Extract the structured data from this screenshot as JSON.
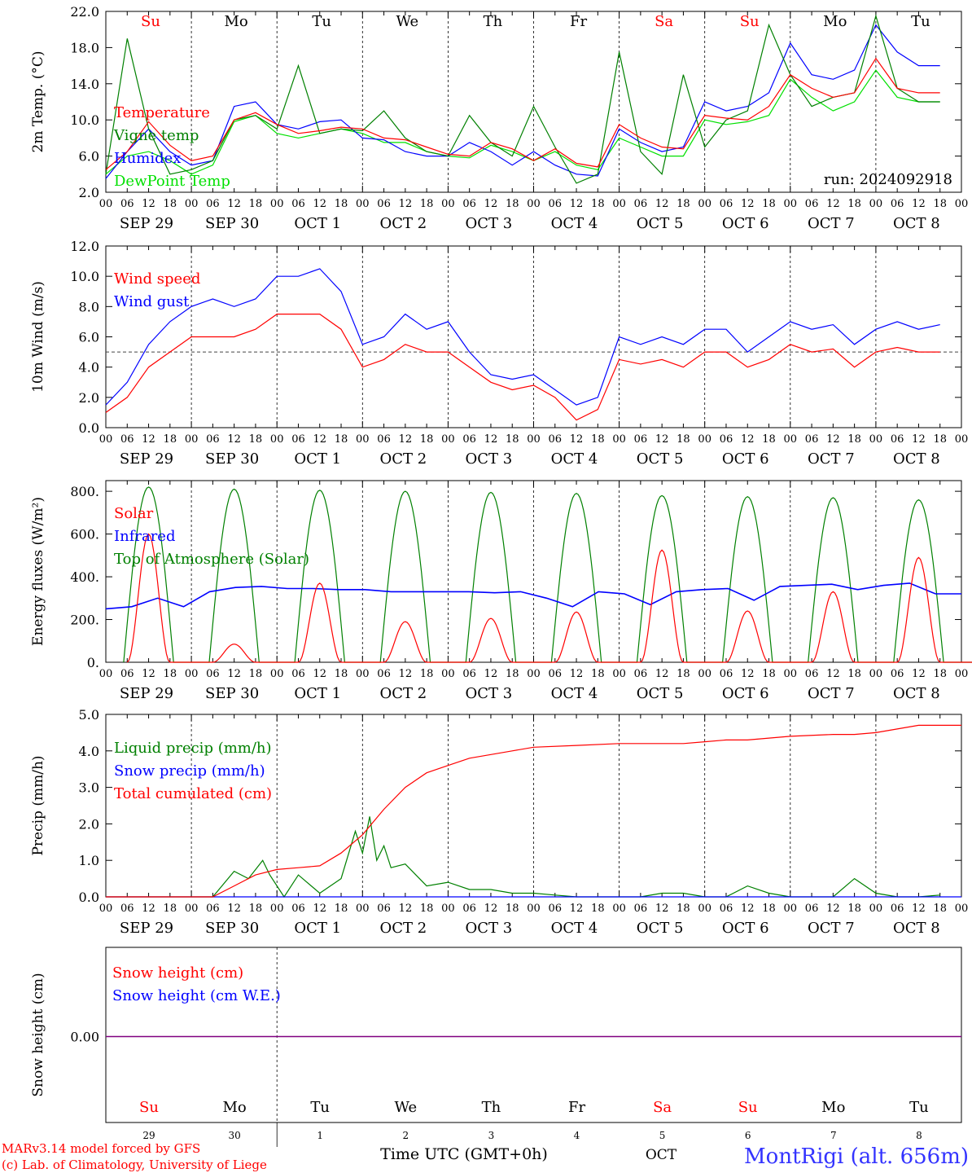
{
  "footer": {
    "model": "MARv3.14 model forced by GFS",
    "copyright": "(c) Lab. of Climatology, University of Liege",
    "xlabel": "Time UTC (GMT+0h)",
    "month": "OCT",
    "station": "MontRigi (alt. 656m)"
  },
  "days": [
    {
      "dow": "Su",
      "date": "SEP 29",
      "num": "29",
      "weekend": true
    },
    {
      "dow": "Mo",
      "date": "SEP 30",
      "num": "30",
      "weekend": false
    },
    {
      "dow": "Tu",
      "date": "OCT  1",
      "num": "1",
      "weekend": false
    },
    {
      "dow": "We",
      "date": "OCT  2",
      "num": "2",
      "weekend": false
    },
    {
      "dow": "Th",
      "date": "OCT  3",
      "num": "3",
      "weekend": false
    },
    {
      "dow": "Fr",
      "date": "OCT  4",
      "num": "4",
      "weekend": false
    },
    {
      "dow": "Sa",
      "date": "OCT  5",
      "num": "5",
      "weekend": true
    },
    {
      "dow": "Su",
      "date": "OCT  6",
      "num": "6",
      "weekend": true
    },
    {
      "dow": "Mo",
      "date": "OCT  7",
      "num": "7",
      "weekend": false
    },
    {
      "dow": "Tu",
      "date": "OCT  8",
      "num": "8",
      "weekend": false
    }
  ],
  "hour_ticks": [
    "00",
    "06",
    "12",
    "18"
  ],
  "colors": {
    "red": "#ff0000",
    "green": "#008000",
    "blue": "#0000ff",
    "lightgreen": "#00e000",
    "purple": "#800080",
    "weekend": "#ff0000"
  },
  "chart_data": [
    {
      "id": "temp",
      "type": "line",
      "ylabel": "2m Temp. (°C)",
      "ylim": [
        2,
        22
      ],
      "yticks": [
        "2.0",
        "6.0",
        "10.0",
        "14.0",
        "18.0",
        "22.0"
      ],
      "ytick_values": [
        2,
        6,
        10,
        14,
        18,
        22
      ],
      "x_hours": [
        0,
        6,
        12,
        18,
        24,
        30,
        36,
        42,
        48,
        54,
        60,
        66,
        72,
        78,
        84,
        90,
        96,
        102,
        108,
        114,
        120,
        126,
        132,
        138,
        144,
        150,
        156,
        162,
        168,
        174,
        180,
        186,
        192,
        198,
        204,
        210,
        216,
        222,
        228,
        234
      ],
      "annotation": "run: 2024092918",
      "series": [
        {
          "name": "Temperature",
          "color": "red",
          "values": [
            4.5,
            6.5,
            9.8,
            7.2,
            5.5,
            6.0,
            10.0,
            10.8,
            9.5,
            8.5,
            8.8,
            9.2,
            9.0,
            8.0,
            7.8,
            7.0,
            6.2,
            6.0,
            7.5,
            6.8,
            5.5,
            6.8,
            5.2,
            4.8,
            9.5,
            8.0,
            7.0,
            6.8,
            10.5,
            10.2,
            10.0,
            11.5,
            15.0,
            13.5,
            12.5,
            13.0,
            16.8,
            13.5,
            13.0,
            13.0
          ]
        },
        {
          "name": "Vigne temp",
          "color": "green",
          "values": [
            4.0,
            19.0,
            9.0,
            4.0,
            4.5,
            5.5,
            10.0,
            10.5,
            9.0,
            16.0,
            8.5,
            9.0,
            8.8,
            11.0,
            8.0,
            6.5,
            6.0,
            10.5,
            7.5,
            6.0,
            11.5,
            7.0,
            3.0,
            4.0,
            17.5,
            6.5,
            4.0,
            15.0,
            7.0,
            10.0,
            11.0,
            20.5,
            15.0,
            11.5,
            12.5,
            13.0,
            21.5,
            13.5,
            12.0,
            12.0
          ]
        },
        {
          "name": "Humidex",
          "color": "blue",
          "values": [
            3.5,
            6.5,
            9.0,
            6.5,
            5.0,
            5.5,
            11.5,
            12.0,
            9.5,
            9.0,
            9.8,
            10.0,
            8.0,
            7.8,
            6.5,
            6.0,
            6.0,
            7.5,
            6.5,
            5.0,
            6.5,
            5.0,
            4.0,
            3.8,
            9.0,
            7.5,
            6.5,
            7.0,
            12.0,
            11.0,
            11.5,
            13.0,
            18.5,
            15.0,
            14.5,
            15.5,
            20.5,
            17.5,
            16.0,
            16.0
          ]
        },
        {
          "name": "DewPoint Temp",
          "color": "lightgreen",
          "values": [
            4.0,
            6.0,
            6.5,
            5.5,
            4.0,
            5.0,
            9.8,
            10.5,
            8.5,
            8.0,
            8.5,
            9.0,
            8.5,
            7.5,
            7.5,
            6.5,
            6.0,
            5.8,
            7.2,
            6.5,
            5.5,
            6.5,
            5.0,
            4.5,
            8.0,
            7.0,
            6.0,
            6.0,
            10.0,
            9.5,
            9.8,
            10.5,
            14.5,
            12.5,
            11.0,
            12.0,
            15.5,
            12.5,
            12.0,
            12.0
          ]
        }
      ]
    },
    {
      "id": "wind",
      "type": "line",
      "ylabel": "10m Wind (m/s)",
      "ylim": [
        0,
        12
      ],
      "yticks": [
        "0.0",
        "2.0",
        "4.0",
        "6.0",
        "8.0",
        "10.0",
        "12.0"
      ],
      "ytick_values": [
        0,
        2,
        4,
        6,
        8,
        10,
        12
      ],
      "x_hours": [
        0,
        6,
        12,
        18,
        24,
        30,
        36,
        42,
        48,
        54,
        60,
        66,
        72,
        78,
        84,
        90,
        96,
        102,
        108,
        114,
        120,
        126,
        132,
        138,
        144,
        150,
        156,
        162,
        168,
        174,
        180,
        186,
        192,
        198,
        204,
        210,
        216,
        222,
        228,
        234
      ],
      "reference_line": 5.0,
      "series": [
        {
          "name": "Wind speed",
          "color": "red",
          "values": [
            1.0,
            2.0,
            4.0,
            5.0,
            6.0,
            6.0,
            6.0,
            6.5,
            7.5,
            7.5,
            7.5,
            6.5,
            4.0,
            4.5,
            5.5,
            5.0,
            5.0,
            4.0,
            3.0,
            2.5,
            2.8,
            2.0,
            0.5,
            1.2,
            4.5,
            4.2,
            4.5,
            4.0,
            5.0,
            5.0,
            4.0,
            4.5,
            5.5,
            5.0,
            5.2,
            4.0,
            5.0,
            5.3,
            5.0,
            5.0
          ]
        },
        {
          "name": "Wind gust",
          "color": "blue",
          "values": [
            1.5,
            3.0,
            5.5,
            7.0,
            8.0,
            8.5,
            8.0,
            8.5,
            10.0,
            10.0,
            10.5,
            9.0,
            5.5,
            6.0,
            7.5,
            6.5,
            7.0,
            5.0,
            3.5,
            3.2,
            3.5,
            2.5,
            1.5,
            2.0,
            6.0,
            5.5,
            6.0,
            5.5,
            6.5,
            6.5,
            5.0,
            6.0,
            7.0,
            6.5,
            6.8,
            5.5,
            6.5,
            7.0,
            6.5,
            6.8
          ]
        }
      ]
    },
    {
      "id": "energy",
      "type": "line",
      "ylabel": "Energy fluxes (W/m²)",
      "ylim": [
        0,
        850
      ],
      "yticks": [
        "0.",
        "200.",
        "400.",
        "600.",
        "800."
      ],
      "ytick_values": [
        0,
        200,
        400,
        600,
        800
      ],
      "series": [
        {
          "name": "Solar",
          "color": "red",
          "daily_peaks": [
            600,
            85,
            370,
            190,
            205,
            235,
            525,
            240,
            330,
            490
          ]
        },
        {
          "name": "Infrared",
          "color": "blue",
          "values": [
            250,
            260,
            300,
            260,
            330,
            350,
            355,
            345,
            345,
            340,
            340,
            330,
            330,
            330,
            330,
            325,
            330,
            300,
            260,
            330,
            320,
            270,
            330,
            340,
            345,
            290,
            355,
            360,
            365,
            340,
            360,
            370,
            320,
            320
          ]
        },
        {
          "name": "Top of Atmosphere (Solar)",
          "color": "green",
          "daily_peaks": [
            820,
            810,
            805,
            800,
            795,
            790,
            780,
            775,
            770,
            760
          ]
        }
      ]
    },
    {
      "id": "precip",
      "type": "line",
      "ylabel": "Precip (mm/h)",
      "ylim": [
        0,
        5
      ],
      "yticks": [
        "0.0",
        "1.0",
        "2.0",
        "3.0",
        "4.0",
        "5.0"
      ],
      "ytick_values": [
        0,
        1,
        2,
        3,
        4,
        5
      ],
      "series": [
        {
          "name": "Liquid precip (mm/h)",
          "color": "green",
          "x_hours": [
            0,
            30,
            36,
            40,
            44,
            46,
            50,
            54,
            60,
            66,
            70,
            72,
            74,
            76,
            78,
            80,
            84,
            90,
            96,
            102,
            108,
            114,
            120,
            126,
            132,
            138,
            144,
            150,
            156,
            162,
            168,
            174,
            180,
            186,
            192,
            198,
            204,
            210,
            216,
            222,
            228,
            234
          ],
          "values": [
            0,
            0,
            0.7,
            0.5,
            1.0,
            0.6,
            0.0,
            0.6,
            0.1,
            0.5,
            1.8,
            1.2,
            2.2,
            1.0,
            1.4,
            0.8,
            0.9,
            0.3,
            0.4,
            0.2,
            0.2,
            0.1,
            0.1,
            0.05,
            0,
            0,
            0,
            0,
            0.1,
            0.1,
            0,
            0,
            0.3,
            0.1,
            0,
            0,
            0,
            0.5,
            0.1,
            0,
            0,
            0.05
          ]
        },
        {
          "name": "Snow precip (mm/h)",
          "color": "blue",
          "x_hours": [
            0,
            240
          ],
          "values": [
            0,
            0
          ]
        },
        {
          "name": "Total cumulated (cm)",
          "color": "red",
          "x_hours": [
            0,
            30,
            36,
            42,
            48,
            54,
            60,
            66,
            72,
            78,
            84,
            90,
            96,
            102,
            108,
            114,
            120,
            132,
            144,
            150,
            156,
            162,
            168,
            174,
            180,
            192,
            204,
            210,
            216,
            222,
            228,
            234,
            240
          ],
          "values": [
            0,
            0,
            0.3,
            0.6,
            0.75,
            0.8,
            0.85,
            1.2,
            1.7,
            2.4,
            3.0,
            3.4,
            3.6,
            3.8,
            3.9,
            4.0,
            4.1,
            4.15,
            4.2,
            4.2,
            4.2,
            4.2,
            4.25,
            4.3,
            4.3,
            4.4,
            4.45,
            4.45,
            4.5,
            4.6,
            4.7,
            4.7,
            4.7
          ]
        }
      ]
    },
    {
      "id": "snow",
      "type": "line",
      "ylabel": "Snow height (cm)",
      "yticks": [
        "0.00"
      ],
      "series": [
        {
          "name": "Snow height (cm)",
          "color": "red",
          "values": [
            0,
            0
          ]
        },
        {
          "name": "Snow height (cm W.E.)",
          "color": "blue",
          "values": [
            0,
            0
          ]
        }
      ]
    }
  ]
}
